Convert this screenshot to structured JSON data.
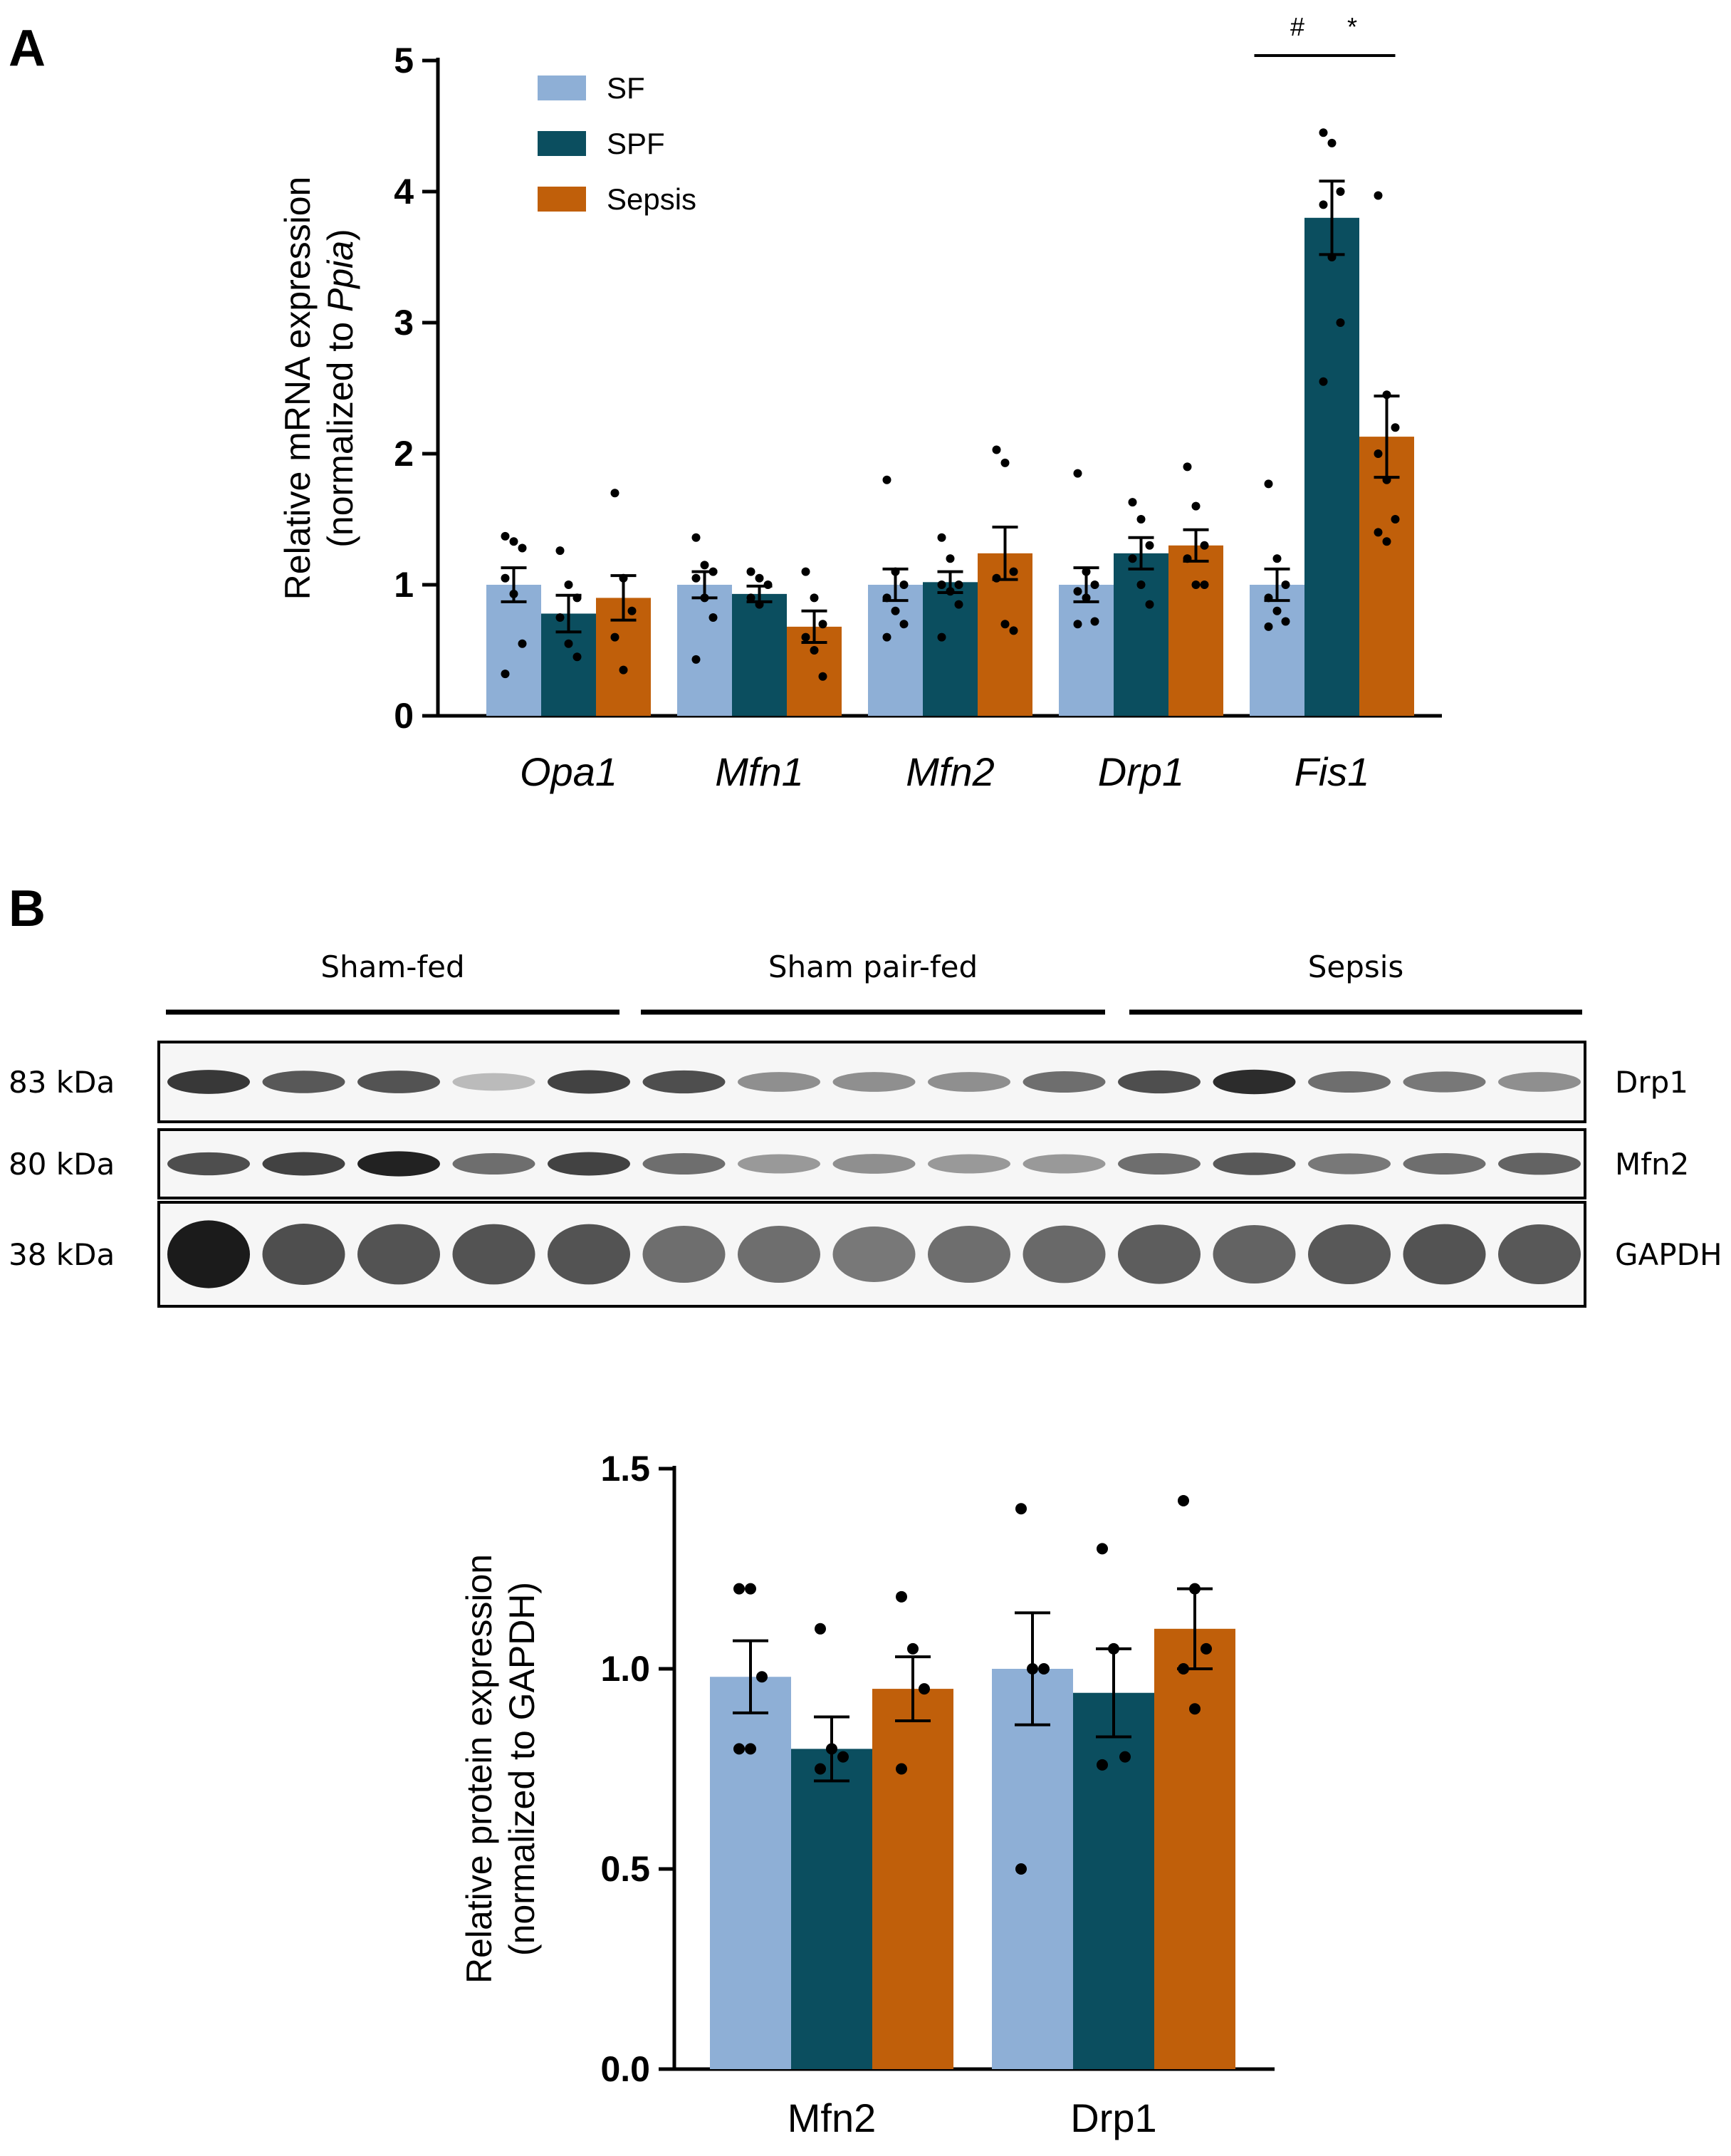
{
  "panel_labels": {
    "a": "A",
    "b": "B"
  },
  "colors": {
    "SF": "#8eafd6",
    "SPF": "#0b4e5f",
    "Sepsis": "#c05f0a"
  },
  "legend": [
    {
      "name": "SF",
      "color": "#8eafd6"
    },
    {
      "name": "SPF",
      "color": "#0b4e5f"
    },
    {
      "name": "Sepsis",
      "color": "#c05f0a"
    }
  ],
  "chart_data": [
    {
      "type": "bar",
      "panel": "A",
      "ylabel_line1": "Relative mRNA expression",
      "ylabel_line2_prefix": "(normalized to ",
      "ylabel_line2_italic": "Ppia",
      "ylabel_line2_suffix": ")",
      "ylim": [
        0,
        5
      ],
      "yticks": [
        "0",
        "1",
        "2",
        "3",
        "4",
        "5"
      ],
      "categories": [
        "Opa1",
        "Mfn1",
        "Mfn2",
        "Drp1",
        "Fis1"
      ],
      "categories_italic": true,
      "series": [
        {
          "name": "SF",
          "values": [
            1.0,
            1.0,
            1.0,
            1.0,
            1.0
          ],
          "sem": [
            0.13,
            0.1,
            0.12,
            0.13,
            0.12
          ],
          "points": [
            [
              1.37,
              1.33,
              1.28,
              1.05,
              0.93,
              0.55,
              0.32
            ],
            [
              1.36,
              1.15,
              1.1,
              1.05,
              0.9,
              0.75,
              0.43
            ],
            [
              1.8,
              1.1,
              1.0,
              0.9,
              0.8,
              0.7,
              0.6
            ],
            [
              1.85,
              1.1,
              1.0,
              0.95,
              0.9,
              0.72,
              0.7
            ],
            [
              1.77,
              1.2,
              1.0,
              0.9,
              0.8,
              0.72,
              0.68
            ]
          ]
        },
        {
          "name": "SPF",
          "values": [
            0.78,
            0.93,
            1.02,
            1.24,
            3.8
          ],
          "sem": [
            0.14,
            0.06,
            0.08,
            0.12,
            0.28
          ],
          "points": [
            [
              1.26,
              1.0,
              0.9,
              0.75,
              0.55,
              0.45
            ],
            [
              1.1,
              1.05,
              1.0,
              0.9,
              0.85
            ],
            [
              1.36,
              1.2,
              1.0,
              1.0,
              0.95,
              0.85,
              0.6
            ],
            [
              1.63,
              1.5,
              1.3,
              1.2,
              1.0,
              0.85
            ],
            [
              4.45,
              4.37,
              4.0,
              3.9,
              3.5,
              3.0,
              2.55
            ]
          ]
        },
        {
          "name": "Sepsis",
          "values": [
            0.9,
            0.68,
            1.24,
            1.3,
            2.13
          ],
          "sem": [
            0.17,
            0.12,
            0.2,
            0.12,
            0.31
          ],
          "points": [
            [
              1.7,
              1.05,
              0.8,
              0.6,
              0.35
            ],
            [
              1.1,
              0.9,
              0.7,
              0.6,
              0.5,
              0.3
            ],
            [
              2.03,
              1.93,
              1.1,
              1.05,
              0.7,
              0.65
            ],
            [
              1.9,
              1.6,
              1.3,
              1.2,
              1.0,
              1.0
            ],
            [
              3.97,
              2.45,
              2.2,
              2.0,
              1.8,
              1.5,
              1.4,
              1.33
            ]
          ]
        }
      ],
      "significance": [
        {
          "label": "#",
          "category": "Fis1",
          "from": "SF",
          "to": "SPF"
        },
        {
          "label": "*",
          "category": "Fis1",
          "from": "SPF",
          "to": "Sepsis"
        }
      ]
    },
    {
      "type": "bar",
      "panel": "B",
      "ylabel_line1": "Relative protein expression",
      "ylabel_line2": "(normalized to GAPDH)",
      "ylim": [
        0,
        1.5
      ],
      "yticks": [
        "0.0",
        "0.5",
        "1.0",
        "1.5"
      ],
      "categories": [
        "Mfn2",
        "Drp1"
      ],
      "categories_italic": false,
      "series": [
        {
          "name": "SF",
          "values": [
            0.98,
            1.0
          ],
          "sem": [
            0.09,
            0.14
          ],
          "points": [
            [
              1.2,
              1.2,
              0.98,
              0.8,
              0.8
            ],
            [
              1.4,
              1.0,
              1.0,
              0.5
            ]
          ]
        },
        {
          "name": "SPF",
          "values": [
            0.8,
            0.94
          ],
          "sem": [
            0.08,
            0.11
          ],
          "points": [
            [
              1.1,
              0.8,
              0.78,
              0.75
            ],
            [
              1.3,
              1.05,
              0.78,
              0.76
            ]
          ]
        },
        {
          "name": "Sepsis",
          "values": [
            0.95,
            1.1
          ],
          "sem": [
            0.08,
            0.1
          ],
          "points": [
            [
              1.18,
              1.05,
              0.95,
              0.75
            ],
            [
              1.42,
              1.2,
              1.05,
              1.0,
              0.9
            ]
          ]
        }
      ]
    }
  ],
  "blot": {
    "groups": [
      "Sham-fed",
      "Sham pair-fed",
      "Sepsis"
    ],
    "rows": [
      {
        "protein": "Drp1",
        "kda": "83 kDa"
      },
      {
        "protein": "Mfn2",
        "kda": "80 kDa"
      },
      {
        "protein": "GAPDH",
        "kda": "38 kDa"
      }
    ],
    "band_intensity": [
      [
        0.85,
        0.7,
        0.72,
        0.25,
        0.8,
        0.75,
        0.45,
        0.45,
        0.45,
        0.6,
        0.75,
        0.9,
        0.6,
        0.55,
        0.45
      ],
      [
        0.75,
        0.8,
        0.95,
        0.6,
        0.8,
        0.6,
        0.4,
        0.45,
        0.4,
        0.4,
        0.6,
        0.7,
        0.55,
        0.6,
        0.65
      ],
      [
        0.98,
        0.75,
        0.72,
        0.72,
        0.72,
        0.6,
        0.6,
        0.55,
        0.6,
        0.62,
        0.68,
        0.65,
        0.7,
        0.72,
        0.7
      ]
    ]
  }
}
